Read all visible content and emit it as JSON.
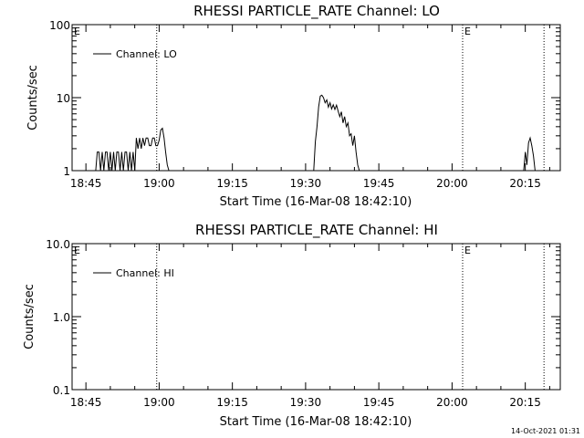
{
  "footer": {
    "timestamp": "14-Oct-2021 01:31"
  },
  "chart_data": [
    {
      "type": "line",
      "title": "RHESSI PARTICLE_RATE Channel: LO",
      "xlabel": "Start Time (16-Mar-08 18:42:10)",
      "ylabel": "Counts/sec",
      "yscale": "log",
      "ylim": [
        1,
        100
      ],
      "yticks": [
        "1",
        "10",
        "100"
      ],
      "xlim": [
        "18:42:10",
        "20:22:10"
      ],
      "xticks": [
        "18:45",
        "19:00",
        "19:15",
        "19:30",
        "19:45",
        "20:00",
        "20:15"
      ],
      "legend": {
        "entries": [
          "Channel: LO"
        ],
        "placement": "top-left"
      },
      "markers": [
        {
          "x": "18:42:10",
          "label": "E",
          "line": false
        },
        {
          "x": "18:59:30",
          "label": "",
          "line": true
        },
        {
          "x": "20:02:10",
          "label": "E",
          "line": true
        },
        {
          "x": "20:18:50",
          "label": "",
          "line": true
        }
      ],
      "series": [
        {
          "x": [
            "18:47:00",
            "18:47:20",
            "18:47:40",
            "18:48:00",
            "18:48:20",
            "18:48:40",
            "18:49:00",
            "18:49:20",
            "18:49:40",
            "18:50:00",
            "18:50:20",
            "18:50:40",
            "18:51:00",
            "18:51:20",
            "18:51:40",
            "18:52:00",
            "18:52:20",
            "18:52:40",
            "18:53:00",
            "18:53:20",
            "18:53:40",
            "18:54:00",
            "18:54:20",
            "18:54:40",
            "18:55:00",
            "18:55:20",
            "18:55:40",
            "18:56:00",
            "18:56:20",
            "18:56:40",
            "18:57:00",
            "18:57:20",
            "18:57:40",
            "18:58:00",
            "18:58:20",
            "18:58:40",
            "18:59:00",
            "18:59:20",
            "18:59:40",
            "19:00:00",
            "19:00:20",
            "19:00:40",
            "19:01:00",
            "19:01:20",
            "19:01:40",
            "19:02:00"
          ],
          "values": [
            1,
            1.8,
            1.8,
            1,
            1.8,
            1,
            1.8,
            1.8,
            1,
            1.8,
            1,
            1.8,
            1,
            1.8,
            1.8,
            1,
            1.8,
            1,
            1.8,
            1.8,
            1,
            1.8,
            1,
            1.8,
            1,
            2.8,
            2,
            2.8,
            2,
            2.8,
            2.2,
            2.8,
            2.8,
            2.2,
            2.2,
            2.8,
            2.8,
            2.2,
            2.2,
            2.6,
            3.6,
            3.8,
            2.8,
            1.8,
            1.2,
            1
          ]
        },
        {
          "x": [
            "19:31:40",
            "19:32:00",
            "19:32:20",
            "19:32:40",
            "19:33:00",
            "19:33:20",
            "19:33:40",
            "19:34:00",
            "19:34:20",
            "19:34:40",
            "19:35:00",
            "19:35:20",
            "19:35:40",
            "19:36:00",
            "19:36:20",
            "19:36:40",
            "19:37:00",
            "19:37:20",
            "19:37:40",
            "19:38:00",
            "19:38:20",
            "19:38:40",
            "19:39:00",
            "19:39:20",
            "19:39:40",
            "19:40:00",
            "19:40:20",
            "19:40:40",
            "19:41:00"
          ],
          "values": [
            1,
            2.5,
            4,
            7.5,
            10.5,
            10.8,
            10,
            8.5,
            9.3,
            7.4,
            8.5,
            7,
            8,
            6.9,
            7.9,
            6.5,
            5.5,
            6.4,
            4.5,
            5.5,
            4,
            4.5,
            3,
            3.2,
            2.2,
            3,
            1.8,
            1.2,
            1
          ]
        },
        {
          "x": [
            "20:14:40",
            "20:15:00",
            "20:15:20",
            "20:15:40",
            "20:16:00",
            "20:16:20",
            "20:16:40",
            "20:17:00"
          ],
          "values": [
            1,
            1.8,
            1.2,
            2.4,
            2.8,
            2.2,
            1.6,
            1
          ]
        }
      ]
    },
    {
      "type": "line",
      "title": "RHESSI PARTICLE_RATE Channel: HI",
      "xlabel": "Start Time (16-Mar-08 18:42:10)",
      "ylabel": "Counts/sec",
      "yscale": "log",
      "ylim": [
        0.1,
        10
      ],
      "yticks": [
        "0.1",
        "1.0",
        "10.0"
      ],
      "xlim": [
        "18:42:10",
        "20:22:10"
      ],
      "xticks": [
        "18:45",
        "19:00",
        "19:15",
        "19:30",
        "19:45",
        "20:00",
        "20:15"
      ],
      "legend": {
        "entries": [
          "Channel: HI"
        ],
        "placement": "top-left"
      },
      "markers": [
        {
          "x": "18:42:10",
          "label": "E",
          "line": false
        },
        {
          "x": "18:59:30",
          "label": "",
          "line": true
        },
        {
          "x": "20:02:10",
          "label": "E",
          "line": true
        },
        {
          "x": "20:18:50",
          "label": "",
          "line": true
        }
      ],
      "series": []
    }
  ]
}
